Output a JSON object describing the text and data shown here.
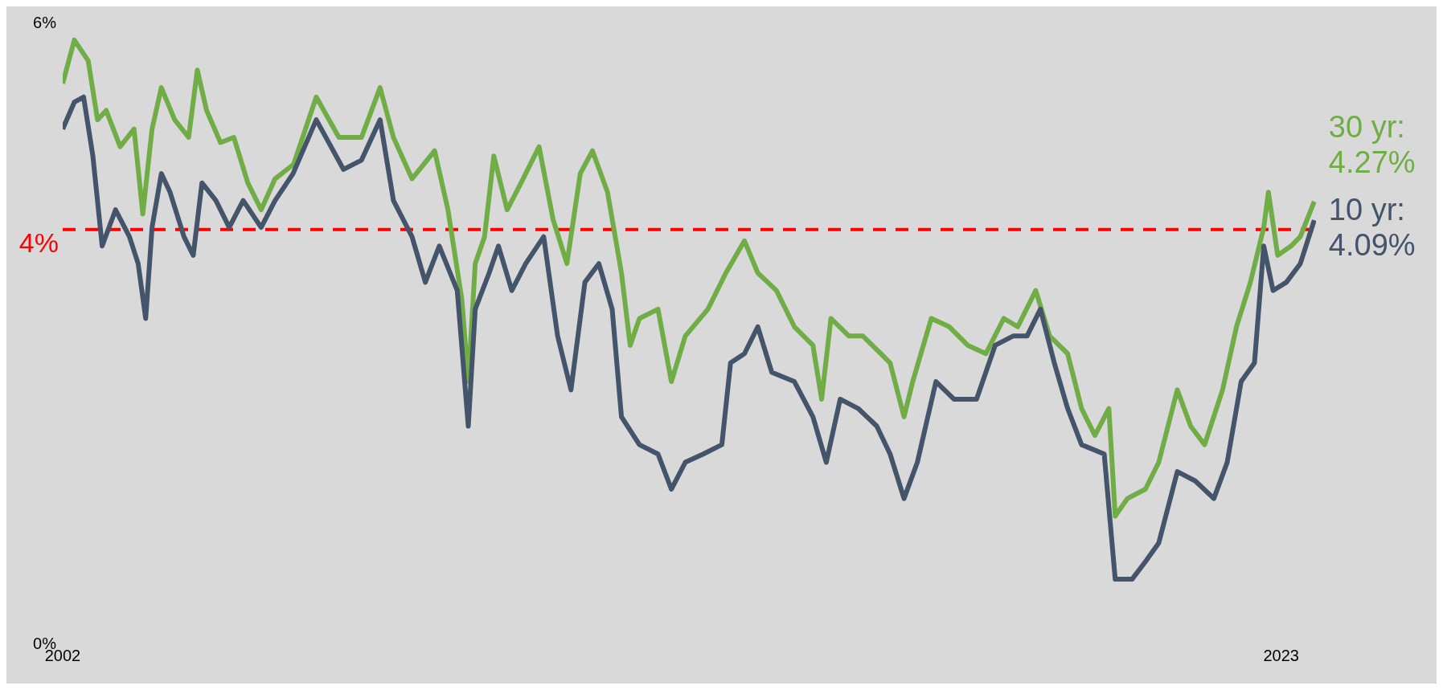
{
  "chart_data": {
    "type": "line",
    "xlim": [
      2002,
      2023.6
    ],
    "xticks": [
      2002,
      2023
    ],
    "ylim": [
      0,
      6
    ],
    "yticks": [
      {
        "value": 0,
        "label": "0%"
      },
      {
        "value": 6,
        "label": "6%"
      }
    ],
    "line_style": "solid",
    "marker": "none",
    "series": [
      {
        "color": "#70ad47",
        "x": [
          2002.0,
          2002.2,
          2002.44,
          2002.6,
          2002.75,
          2002.99,
          2003.23,
          2003.38,
          2003.54,
          2003.7,
          2003.93,
          2004.17,
          2004.32,
          2004.48,
          2004.72,
          2004.95,
          2005.19,
          2005.42,
          2005.66,
          2005.98,
          2006.37,
          2006.76,
          2007.15,
          2007.47,
          2007.7,
          2008.02,
          2008.41,
          2008.64,
          2008.88,
          2008.99,
          2009.11,
          2009.27,
          2009.43,
          2009.66,
          2009.9,
          2010.21,
          2010.45,
          2010.69,
          2010.92,
          2011.13,
          2011.39,
          2011.63,
          2011.78,
          2011.94,
          2012.26,
          2012.49,
          2012.73,
          2013.12,
          2013.43,
          2013.75,
          2013.98,
          2014.3,
          2014.61,
          2014.93,
          2015.08,
          2015.24,
          2015.55,
          2015.79,
          2016.1,
          2016.26,
          2016.5,
          2016.65,
          2016.97,
          2017.28,
          2017.6,
          2017.91,
          2018.22,
          2018.46,
          2018.77,
          2019.01,
          2019.32,
          2019.56,
          2019.79,
          2020.03,
          2020.14,
          2020.35,
          2020.66,
          2020.89,
          2021.21,
          2021.44,
          2021.68,
          2021.99,
          2022.23,
          2022.47,
          2022.7,
          2022.78,
          2022.94,
          2023.17,
          2023.33,
          2023.57
        ],
        "values": [
          5.41,
          5.83,
          5.63,
          5.06,
          5.15,
          4.8,
          4.97,
          4.15,
          4.97,
          5.37,
          5.06,
          4.89,
          5.54,
          5.15,
          4.84,
          4.89,
          4.45,
          4.19,
          4.49,
          4.63,
          5.28,
          4.89,
          4.89,
          5.37,
          4.89,
          4.49,
          4.76,
          4.19,
          3.32,
          2.53,
          3.67,
          3.93,
          4.71,
          4.19,
          4.45,
          4.8,
          4.1,
          3.67,
          4.54,
          4.76,
          4.36,
          3.58,
          2.88,
          3.14,
          3.23,
          2.53,
          2.97,
          3.23,
          3.58,
          3.89,
          3.58,
          3.41,
          3.06,
          2.88,
          2.36,
          3.14,
          2.97,
          2.97,
          2.8,
          2.71,
          2.19,
          2.53,
          3.14,
          3.06,
          2.88,
          2.8,
          3.14,
          3.06,
          3.41,
          2.97,
          2.8,
          2.27,
          2.01,
          2.27,
          1.23,
          1.4,
          1.49,
          1.75,
          2.45,
          2.1,
          1.92,
          2.45,
          3.06,
          3.49,
          4.02,
          4.36,
          3.75,
          3.84,
          3.93,
          4.27
        ]
      },
      {
        "color": "#44546a",
        "x": [
          2002.0,
          2002.2,
          2002.36,
          2002.52,
          2002.68,
          2002.91,
          2003.15,
          2003.3,
          2003.43,
          2003.54,
          2003.7,
          2003.85,
          2004.09,
          2004.25,
          2004.4,
          2004.64,
          2004.87,
          2005.11,
          2005.42,
          2005.66,
          2005.97,
          2006.37,
          2006.84,
          2007.15,
          2007.47,
          2007.7,
          2008.02,
          2008.25,
          2008.49,
          2008.8,
          2008.99,
          2009.11,
          2009.35,
          2009.51,
          2009.74,
          2009.98,
          2010.29,
          2010.53,
          2010.76,
          2011.0,
          2011.24,
          2011.47,
          2011.63,
          2011.94,
          2012.26,
          2012.49,
          2012.73,
          2013.04,
          2013.36,
          2013.51,
          2013.75,
          2013.98,
          2014.22,
          2014.61,
          2014.93,
          2015.16,
          2015.4,
          2015.71,
          2016.03,
          2016.26,
          2016.5,
          2016.73,
          2017.05,
          2017.36,
          2017.75,
          2018.07,
          2018.38,
          2018.62,
          2018.85,
          2019.09,
          2019.32,
          2019.56,
          2019.95,
          2020.14,
          2020.43,
          2020.66,
          2020.89,
          2021.21,
          2021.52,
          2021.84,
          2022.07,
          2022.31,
          2022.54,
          2022.7,
          2022.86,
          2023.09,
          2023.33,
          2023.57
        ],
        "values": [
          4.97,
          5.23,
          5.28,
          4.71,
          3.84,
          4.19,
          3.93,
          3.67,
          3.14,
          4.02,
          4.54,
          4.36,
          3.93,
          3.75,
          4.45,
          4.28,
          4.02,
          4.28,
          4.02,
          4.28,
          4.54,
          5.06,
          4.58,
          4.67,
          5.06,
          4.28,
          3.93,
          3.49,
          3.84,
          3.41,
          2.1,
          3.23,
          3.58,
          3.84,
          3.41,
          3.67,
          3.93,
          2.97,
          2.45,
          3.49,
          3.67,
          3.23,
          2.19,
          1.92,
          1.83,
          1.49,
          1.75,
          1.83,
          1.92,
          2.71,
          2.8,
          3.06,
          2.62,
          2.53,
          2.19,
          1.75,
          2.36,
          2.27,
          2.1,
          1.83,
          1.4,
          1.75,
          2.53,
          2.36,
          2.36,
          2.88,
          2.97,
          2.97,
          3.23,
          2.71,
          2.27,
          1.92,
          1.83,
          0.62,
          0.62,
          0.79,
          0.97,
          1.66,
          1.57,
          1.4,
          1.75,
          2.53,
          2.71,
          3.84,
          3.41,
          3.49,
          3.67,
          4.09
        ]
      }
    ],
    "ref_lines": [
      {
        "axis": "y",
        "value": 4,
        "label": "4%",
        "color": "#ff0000",
        "line_style": "dashed"
      }
    ],
    "annotations": [
      {
        "text": "30 yr: 4.27%",
        "x": 2023.57,
        "y": 4.27
      },
      {
        "text": "10 yr: 4.09%",
        "x": 2023.57,
        "y": 4.09
      }
    ]
  }
}
